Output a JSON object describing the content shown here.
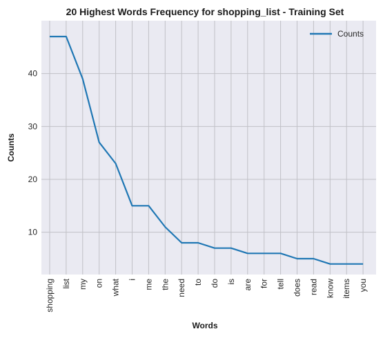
{
  "chart_data": {
    "type": "line",
    "title": "20 Highest Words Frequency for shopping_list - Training Set",
    "xlabel": "Words",
    "ylabel": "Counts",
    "categories": [
      "shopping",
      "list",
      "my",
      "on",
      "what",
      "i",
      "me",
      "the",
      "need",
      "to",
      "do",
      "is",
      "are",
      "for",
      "tell",
      "does",
      "read",
      "know",
      "items",
      "you"
    ],
    "series": [
      {
        "name": "Counts",
        "values": [
          47,
          47,
          39,
          27,
          23,
          15,
          15,
          11,
          8,
          8,
          7,
          7,
          6,
          6,
          6,
          5,
          5,
          4,
          4,
          4
        ],
        "color": "#1f77b4"
      }
    ],
    "yticks": [
      10,
      20,
      30,
      40
    ],
    "ylim": [
      2,
      50
    ],
    "grid": true,
    "legend_position": "top-right",
    "background": "#eaeaf2",
    "grid_color": "#c0c0c6"
  }
}
